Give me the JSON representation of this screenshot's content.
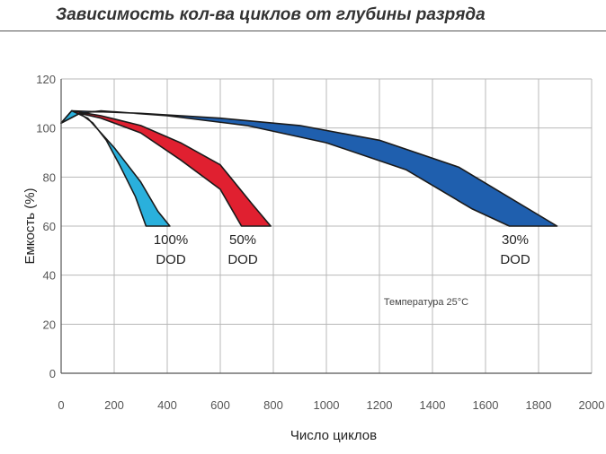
{
  "chart_data": {
    "type": "area",
    "title": "Зависимость кол-ва циклов от глубины разряда",
    "xlabel": "Число циклов",
    "ylabel": "Емкость (%)",
    "xlim": [
      0,
      2000
    ],
    "ylim": [
      0,
      120
    ],
    "x_ticks": [
      "0",
      "200",
      "400",
      "600",
      "800",
      "1000",
      "1200",
      "1400",
      "1600",
      "1800",
      "2000"
    ],
    "y_ticks": [
      "0",
      "20",
      "40",
      "60",
      "80",
      "100",
      "120"
    ],
    "grid": true,
    "annotation": "Температура 25°С",
    "series": [
      {
        "label_line1": "100%",
        "label_line2": "DOD",
        "color": "#2ab0dc",
        "upper": [
          [
            0,
            102
          ],
          [
            40,
            107
          ],
          [
            100,
            104
          ],
          [
            200,
            92
          ],
          [
            300,
            78
          ],
          [
            365,
            66
          ],
          [
            410,
            60
          ]
        ],
        "lower": [
          [
            320,
            60
          ],
          [
            280,
            72
          ],
          [
            220,
            85
          ],
          [
            170,
            95
          ],
          [
            120,
            102
          ],
          [
            70,
            106
          ]
        ]
      },
      {
        "label_line1": "50%",
        "label_line2": "DOD",
        "color": "#e02030",
        "upper": [
          [
            0,
            102
          ],
          [
            40,
            107
          ],
          [
            150,
            105
          ],
          [
            300,
            101
          ],
          [
            450,
            94
          ],
          [
            600,
            85
          ],
          [
            720,
            69
          ],
          [
            790,
            60
          ]
        ],
        "lower": [
          [
            680,
            60
          ],
          [
            600,
            75
          ],
          [
            450,
            87
          ],
          [
            300,
            98
          ],
          [
            150,
            104
          ],
          [
            70,
            106
          ]
        ]
      },
      {
        "label_line1": "30%",
        "label_line2": "DOD",
        "color": "#1f5fae",
        "upper": [
          [
            0,
            102
          ],
          [
            40,
            107
          ],
          [
            300,
            106
          ],
          [
            600,
            104
          ],
          [
            900,
            101
          ],
          [
            1200,
            95
          ],
          [
            1500,
            84
          ],
          [
            1700,
            71
          ],
          [
            1870,
            60
          ]
        ],
        "lower": [
          [
            1690,
            60
          ],
          [
            1550,
            67
          ],
          [
            1300,
            83
          ],
          [
            1000,
            94
          ],
          [
            700,
            101
          ],
          [
            400,
            105
          ],
          [
            150,
            107
          ],
          [
            70,
            106
          ]
        ]
      }
    ]
  }
}
